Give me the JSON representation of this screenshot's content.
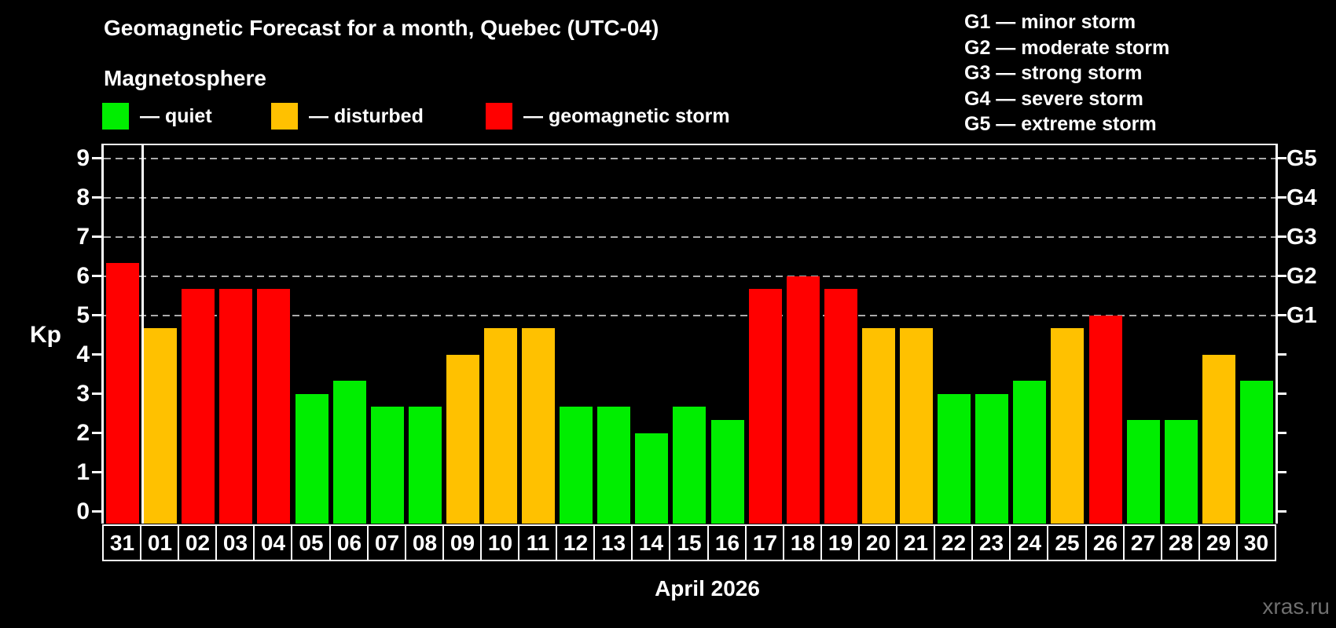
{
  "header": {
    "title": "Geomagnetic Forecast for a month, Quebec (UTC-04)",
    "subtitle": "Magnetosphere"
  },
  "colors": {
    "quiet": "#00ee00",
    "disturbed": "#ffc100",
    "storm": "#ff0000",
    "grid": "#aaaaaa",
    "axis": "#ffffff",
    "background": "#000000",
    "watermark": "#6f6f6f"
  },
  "legend": {
    "items": [
      {
        "key": "quiet",
        "label": "— quiet"
      },
      {
        "key": "disturbed",
        "label": "— disturbed"
      },
      {
        "key": "storm",
        "label": "— geomagnetic storm"
      }
    ]
  },
  "g_scale_legend": {
    "items": [
      "G1 — minor storm",
      "G2 — moderate storm",
      "G3 — strong storm",
      "G4 — severe storm",
      "G5 — extreme storm"
    ]
  },
  "watermark": "xras.ru",
  "chart_data": {
    "type": "bar",
    "title": "Geomagnetic Forecast for a month, Quebec (UTC-04)",
    "xlabel": "April 2026",
    "ylabel": "Kp",
    "ylim": [
      0,
      9.4
    ],
    "yticks": [
      0,
      1,
      2,
      3,
      4,
      5,
      6,
      7,
      8,
      9
    ],
    "gridlines_at": [
      5,
      6,
      7,
      8,
      9
    ],
    "grid_style": "dashed",
    "legend_position": "top-left",
    "right_axis_labels": [
      {
        "value": 5,
        "label": "G1"
      },
      {
        "value": 6,
        "label": "G2"
      },
      {
        "value": 7,
        "label": "G3"
      },
      {
        "value": 8,
        "label": "G4"
      },
      {
        "value": 9,
        "label": "G5"
      }
    ],
    "month_divider_after_index": 0,
    "categories": [
      "31",
      "01",
      "02",
      "03",
      "04",
      "05",
      "06",
      "07",
      "08",
      "09",
      "10",
      "11",
      "12",
      "13",
      "14",
      "15",
      "16",
      "17",
      "18",
      "19",
      "20",
      "21",
      "22",
      "23",
      "24",
      "25",
      "26",
      "27",
      "28",
      "29",
      "30"
    ],
    "values": [
      6.33,
      4.67,
      5.67,
      5.67,
      5.67,
      3.0,
      3.33,
      2.67,
      2.67,
      4.0,
      4.67,
      4.67,
      2.67,
      2.67,
      2.0,
      2.67,
      2.33,
      5.67,
      6.0,
      5.67,
      4.67,
      4.67,
      3.0,
      3.0,
      3.33,
      4.67,
      5.0,
      2.33,
      2.33,
      4.0,
      3.33
    ],
    "statuses": [
      "storm",
      "disturbed",
      "storm",
      "storm",
      "storm",
      "quiet",
      "quiet",
      "quiet",
      "quiet",
      "disturbed",
      "disturbed",
      "disturbed",
      "quiet",
      "quiet",
      "quiet",
      "quiet",
      "quiet",
      "storm",
      "storm",
      "storm",
      "disturbed",
      "disturbed",
      "quiet",
      "quiet",
      "quiet",
      "disturbed",
      "storm",
      "quiet",
      "quiet",
      "disturbed",
      "quiet"
    ]
  }
}
